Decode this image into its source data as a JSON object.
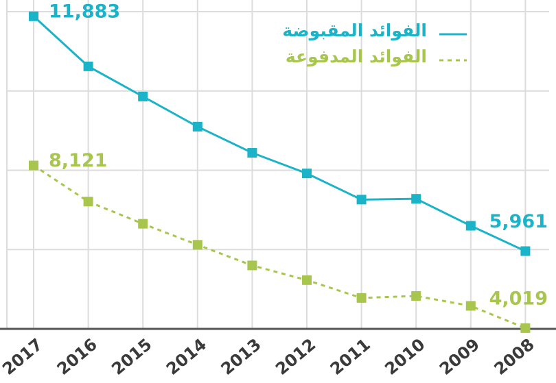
{
  "chart_data": {
    "type": "line",
    "categories": [
      "2017",
      "2016",
      "2015",
      "2014",
      "2013",
      "2012",
      "2011",
      "2010",
      "2009",
      "2008"
    ],
    "series": [
      {
        "name": "الفوائد المقبوضة",
        "color": "#1bb3c8",
        "dash": false,
        "values": [
          11883,
          10620,
          9860,
          9100,
          8440,
          7920,
          7260,
          7280,
          6600,
          5961
        ],
        "value_labels": [
          "11,883",
          null,
          null,
          null,
          null,
          null,
          null,
          null,
          null,
          "5,961"
        ]
      },
      {
        "name": "الفوائد المدفوعة",
        "color": "#a8c64e",
        "dash": true,
        "values": [
          8121,
          7210,
          6650,
          6120,
          5600,
          5230,
          4780,
          4830,
          4580,
          4019
        ],
        "value_labels": [
          "8,121",
          null,
          null,
          null,
          null,
          null,
          null,
          null,
          null,
          "4,019"
        ]
      }
    ],
    "ylim": [
      4000,
      12000
    ],
    "yticks": [
      4000,
      6000,
      8000,
      10000,
      12000
    ],
    "grid": true,
    "legend": "top-right"
  }
}
